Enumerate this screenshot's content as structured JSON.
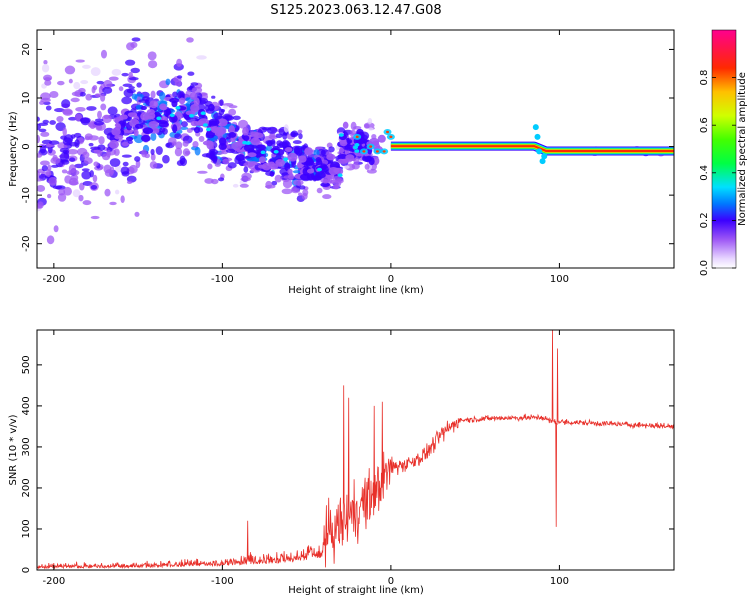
{
  "title": "S125.2023.063.12.47.G08",
  "chart_data": [
    {
      "type": "heatmap",
      "xlabel": "Height of straight line (km)",
      "ylabel": "Frequency (Hz)",
      "xlim": [
        -210,
        168
      ],
      "ylim": [
        -25,
        24
      ],
      "xticks": [
        -200,
        -100,
        0,
        100
      ],
      "yticks": [
        -20,
        -10,
        0,
        10,
        20
      ],
      "colorbar": {
        "label": "Normalized spectral amplitude",
        "range": [
          0,
          1
        ],
        "ticks": [
          "0.0",
          "0.2",
          "0.4",
          "0.6",
          "0.8"
        ],
        "tick_values": [
          0.0,
          0.2,
          0.4,
          0.6,
          0.8
        ]
      },
      "main_line": [
        {
          "x": 0,
          "y": 0.1
        },
        {
          "x": 85,
          "y": 0.1
        },
        {
          "x": 92,
          "y": -0.9
        },
        {
          "x": 168,
          "y": -0.9
        }
      ],
      "scatter_region": {
        "x_range": [
          -210,
          -5
        ],
        "description_points": [
          {
            "x": -200,
            "y": 0
          },
          {
            "x": -150,
            "y": 5
          },
          {
            "x": -120,
            "y": 8
          },
          {
            "x": -100,
            "y": 2
          },
          {
            "x": -70,
            "y": -2
          },
          {
            "x": -50,
            "y": -4
          },
          {
            "x": -30,
            "y": -5
          }
        ]
      }
    },
    {
      "type": "line",
      "xlabel": "Height of straight line (km)",
      "ylabel": "SNR (10 * v/v)",
      "xlim": [
        -210,
        168
      ],
      "ylim": [
        0,
        585
      ],
      "xticks": [
        -200,
        -100,
        0,
        100
      ],
      "yticks": [
        0,
        100,
        200,
        300,
        400,
        500
      ],
      "color": "#e8302a",
      "trend": [
        {
          "x": -210,
          "y": 10
        },
        {
          "x": -150,
          "y": 15
        },
        {
          "x": -100,
          "y": 25
        },
        {
          "x": -60,
          "y": 45
        },
        {
          "x": -40,
          "y": 70
        },
        {
          "x": -30,
          "y": 110
        },
        {
          "x": -20,
          "y": 150
        },
        {
          "x": -10,
          "y": 180
        },
        {
          "x": 0,
          "y": 250
        },
        {
          "x": 10,
          "y": 260
        },
        {
          "x": 20,
          "y": 280
        },
        {
          "x": 30,
          "y": 330
        },
        {
          "x": 40,
          "y": 365
        },
        {
          "x": 60,
          "y": 370
        },
        {
          "x": 90,
          "y": 372
        },
        {
          "x": 95,
          "y": 362
        },
        {
          "x": 120,
          "y": 358
        },
        {
          "x": 168,
          "y": 350
        }
      ],
      "spikes": [
        {
          "x": -85,
          "y": 120
        },
        {
          "x": -28,
          "y": 450
        },
        {
          "x": -25,
          "y": 420
        },
        {
          "x": -10,
          "y": 400
        },
        {
          "x": -5,
          "y": 410
        },
        {
          "x": 96,
          "y": 590
        },
        {
          "x": 98,
          "y": 105
        },
        {
          "x": 99,
          "y": 540
        }
      ]
    }
  ]
}
